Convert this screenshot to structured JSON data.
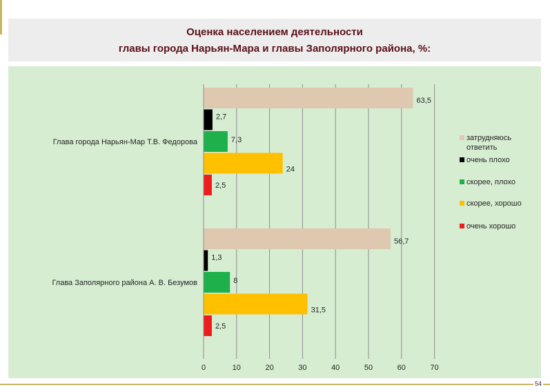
{
  "title": {
    "line1": "Оценка населением деятельности",
    "line2": "главы  города Нарьян-Мара и главы Заполярного района, %:"
  },
  "page_number": "54",
  "chart_data": {
    "type": "bar",
    "orientation": "horizontal",
    "title": "Оценка населением деятельности главы  города Нарьян-Мара и главы Заполярного района, %:",
    "categories": [
      "Глава города Нарьян-Мар  Т.В. Федорова",
      "Глава  Заполярного района   А. В. Безумов"
    ],
    "series": [
      {
        "name": "затрудняюсь ответить",
        "color": "#dfc8b0",
        "values": [
          63.5,
          56.7
        ],
        "labels": [
          "63,5",
          "56,7"
        ]
      },
      {
        "name": "очень плохо",
        "color": "#000000",
        "values": [
          2.7,
          1.3
        ],
        "labels": [
          "2,7",
          "1,3"
        ]
      },
      {
        "name": "скорее, плохо",
        "color": "#1db04b",
        "values": [
          7.3,
          8
        ],
        "labels": [
          "7,3",
          "8"
        ]
      },
      {
        "name": "скорее, хорошо",
        "color": "#ffc000",
        "values": [
          24,
          31.5
        ],
        "labels": [
          "24",
          "31,5"
        ]
      },
      {
        "name": "очень хорошо",
        "color": "#ee1c1c",
        "values": [
          2.5,
          2.5
        ],
        "labels": [
          "2,5",
          "2,5"
        ]
      }
    ],
    "xlim": [
      0,
      70
    ],
    "xticks": [
      0,
      10,
      20,
      30,
      40,
      50,
      60,
      70
    ],
    "grid": true,
    "legend": "right"
  }
}
